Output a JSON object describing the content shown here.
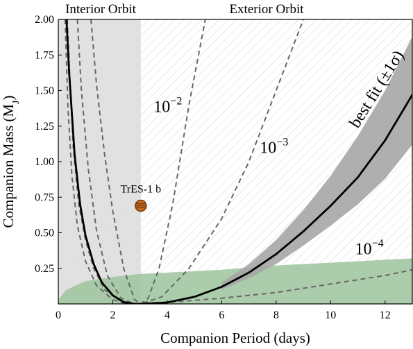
{
  "chart_data": {
    "type": "line",
    "xlabel": "Companion Period (days)",
    "ylabel_main": "Companion Mass (M",
    "ylabel_sub": "J",
    "ylabel_close": ")",
    "xlim": [
      0,
      13
    ],
    "ylim": [
      0,
      2.0
    ],
    "x_ticks": [
      0,
      2,
      4,
      6,
      8,
      10,
      12
    ],
    "y_ticks": [
      0.25,
      0.5,
      0.75,
      1.0,
      1.25,
      1.5,
      1.75,
      2.0
    ],
    "x_tick_labels": [
      "0",
      "2",
      "4",
      "6",
      "8",
      "10",
      "12"
    ],
    "y_tick_labels": [
      "0.25",
      "0.50",
      "0.75",
      "1.00",
      "1.25",
      "1.50",
      "1.75",
      "2.00"
    ],
    "regions": {
      "interior_label": "Interior Orbit",
      "exterior_label": "Exterior Orbit",
      "interior_x_range": [
        0,
        3.03
      ]
    },
    "planet": {
      "name": "TrES-1 b",
      "period": 3.03,
      "mass": 0.69
    },
    "best_fit": {
      "label": "best fit (±1σ)",
      "points": [
        [
          0.3,
          2.0
        ],
        [
          0.4,
          1.62
        ],
        [
          0.6,
          1.05
        ],
        [
          0.8,
          0.7
        ],
        [
          1.0,
          0.48
        ],
        [
          1.3,
          0.28
        ],
        [
          1.6,
          0.15
        ],
        [
          2.0,
          0.06
        ],
        [
          2.4,
          0.012
        ],
        [
          2.8,
          0.0
        ],
        [
          3.03,
          0.0
        ],
        [
          4.0,
          0.01
        ],
        [
          5.0,
          0.05
        ],
        [
          6.0,
          0.12
        ],
        [
          7.0,
          0.22
        ],
        [
          8.0,
          0.35
        ],
        [
          9.0,
          0.51
        ],
        [
          10.0,
          0.69
        ],
        [
          11.0,
          0.89
        ],
        [
          12.0,
          1.15
        ],
        [
          13.0,
          1.47
        ]
      ],
      "band_upper": [
        [
          6.0,
          0.15
        ],
        [
          7.0,
          0.28
        ],
        [
          8.0,
          0.45
        ],
        [
          9.0,
          0.66
        ],
        [
          10.0,
          0.9
        ],
        [
          11.0,
          1.18
        ],
        [
          12.0,
          1.5
        ],
        [
          13.0,
          1.88
        ]
      ],
      "band_lower": [
        [
          6.0,
          0.1
        ],
        [
          7.0,
          0.18
        ],
        [
          8.0,
          0.28
        ],
        [
          9.0,
          0.41
        ],
        [
          10.0,
          0.55
        ],
        [
          11.0,
          0.7
        ],
        [
          12.0,
          0.88
        ],
        [
          13.0,
          1.12
        ]
      ]
    },
    "dashed_curves": [
      {
        "name": "10^-2",
        "points": [
          [
            1.2,
            2.0
          ],
          [
            1.4,
            1.55
          ],
          [
            1.7,
            1.05
          ],
          [
            2.0,
            0.65
          ],
          [
            2.4,
            0.25
          ],
          [
            2.8,
            0.03
          ],
          [
            3.03,
            0.0
          ],
          [
            3.3,
            0.04
          ],
          [
            3.7,
            0.25
          ],
          [
            4.2,
            0.7
          ],
          [
            4.8,
            1.4
          ],
          [
            5.4,
            2.0
          ]
        ]
      },
      {
        "name": "10^-3",
        "points": [
          [
            0.7,
            2.0
          ],
          [
            0.85,
            1.5
          ],
          [
            1.1,
            0.95
          ],
          [
            1.4,
            0.52
          ],
          [
            1.8,
            0.2
          ],
          [
            2.3,
            0.04
          ],
          [
            2.8,
            0.0
          ],
          [
            3.03,
            0.0
          ],
          [
            3.8,
            0.05
          ],
          [
            4.8,
            0.25
          ],
          [
            6.0,
            0.6
          ],
          [
            7.0,
            1.0
          ],
          [
            8.0,
            1.5
          ],
          [
            9.0,
            2.0
          ]
        ]
      },
      {
        "name": "10^-4",
        "points": [
          [
            0.25,
            2.0
          ],
          [
            0.35,
            1.4
          ],
          [
            0.5,
            0.9
          ],
          [
            0.7,
            0.55
          ],
          [
            1.0,
            0.3
          ],
          [
            1.4,
            0.13
          ],
          [
            2.0,
            0.03
          ],
          [
            2.5,
            0.0
          ],
          [
            3.03,
            0.0
          ],
          [
            4.0,
            0.01
          ],
          [
            6.0,
            0.04
          ],
          [
            8.0,
            0.08
          ],
          [
            10.0,
            0.14
          ],
          [
            12.0,
            0.2
          ],
          [
            13.0,
            0.24
          ]
        ]
      },
      {
        "name": "edge",
        "points": [
          [
            0.33,
            2.0
          ],
          [
            0.42,
            1.6
          ],
          [
            0.55,
            1.1
          ],
          [
            0.75,
            0.7
          ],
          [
            1.0,
            0.45
          ],
          [
            1.3,
            0.25
          ],
          [
            1.7,
            0.1
          ],
          [
            2.2,
            0.03
          ],
          [
            2.8,
            0.0
          ],
          [
            3.03,
            0.0
          ]
        ]
      }
    ],
    "green_region": {
      "upper": [
        [
          0,
          0.03
        ],
        [
          0.3,
          0.1
        ],
        [
          1.0,
          0.16
        ],
        [
          2.0,
          0.19
        ],
        [
          3.0,
          0.21
        ],
        [
          4.0,
          0.22
        ],
        [
          6.0,
          0.24
        ],
        [
          8.0,
          0.27
        ],
        [
          10.0,
          0.29
        ],
        [
          12.0,
          0.31
        ],
        [
          13.0,
          0.32
        ]
      ]
    },
    "annotations": [
      {
        "base": "10",
        "exp": "−2",
        "x": 3.5,
        "y": 1.35
      },
      {
        "base": "10",
        "exp": "−3",
        "x": 7.4,
        "y": 1.06
      },
      {
        "base": "10",
        "exp": "−4",
        "x": 10.9,
        "y": 0.35
      }
    ],
    "colors": {
      "interior_shade": "#dcdcdc",
      "band": "#a6a6a6",
      "best_fit": "#000000",
      "dashed": "#666666",
      "green": "#9cc49c",
      "hatch": "#d4d4d4",
      "planet_orange": "#c86a1e",
      "planet_dark": "#6b3a10"
    }
  }
}
